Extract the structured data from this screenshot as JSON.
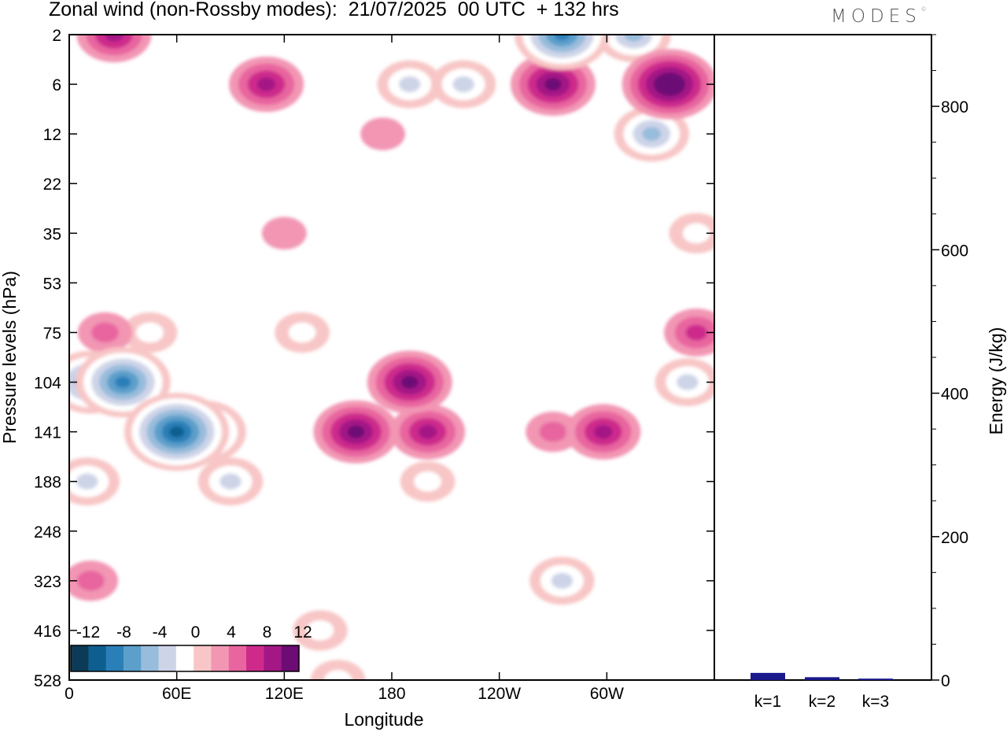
{
  "header": {
    "title": "Zonal wind (non-Rossby modes):  21/07/2025  00 UTC  + 132 hrs",
    "logo": "MODES"
  },
  "chart_data": [
    {
      "type": "heatmap",
      "title": "Zonal wind (non-Rossby modes):  21/07/2025  00 UTC  + 132 hrs",
      "xlabel": "Longitude",
      "ylabel": "Pressure levels (hPa)",
      "x_ticks": [
        "0",
        "60E",
        "120E",
        "180",
        "120W",
        "60W"
      ],
      "x_tick_values": [
        0,
        60,
        120,
        180,
        240,
        300
      ],
      "xlim": [
        0,
        360
      ],
      "y_ticks": [
        "2",
        "6",
        "12",
        "22",
        "35",
        "53",
        "75",
        "104",
        "141",
        "188",
        "248",
        "323",
        "416",
        "528"
      ],
      "colorbar_labels": [
        "-12",
        "-8",
        "-4",
        "0",
        "4",
        "8",
        "12"
      ],
      "contour_levels": [
        -14,
        -12,
        -10,
        -8,
        -6,
        -4,
        -2,
        2,
        4,
        6,
        8,
        10,
        12,
        14
      ],
      "colors": [
        "#0d3b57",
        "#0e5f8f",
        "#2a7fb8",
        "#5b9fca",
        "#98bcdc",
        "#ced4e8",
        "#ffffff",
        "#f8c6c6",
        "#f296b4",
        "#e8659f",
        "#cd2a8c",
        "#a41886",
        "#6c0c74"
      ],
      "cells": [
        {
          "lon": 12,
          "lev": "104",
          "value": -10
        },
        {
          "lon": 30,
          "lev": "104",
          "value": -12
        },
        {
          "lon": 60,
          "lev": "141",
          "value": -14
        },
        {
          "lon": 75,
          "lev": "141",
          "value": -10
        },
        {
          "lon": 10,
          "lev": "188",
          "value": -6
        },
        {
          "lon": 90,
          "lev": "188",
          "value": -6
        },
        {
          "lon": 45,
          "lev": "75",
          "value": -4
        },
        {
          "lon": 130,
          "lev": "75",
          "value": -4
        },
        {
          "lon": 140,
          "lev": "416",
          "value": -4
        },
        {
          "lon": 150,
          "lev": "528",
          "value": -4
        },
        {
          "lon": 160,
          "lev": "141",
          "value": 10
        },
        {
          "lon": 190,
          "lev": "104",
          "value": 10
        },
        {
          "lon": 200,
          "lev": "141",
          "value": 8
        },
        {
          "lon": 298,
          "lev": "141",
          "value": 8
        },
        {
          "lon": 270,
          "lev": "141",
          "value": 4
        },
        {
          "lon": 350,
          "lev": "75",
          "value": 6
        },
        {
          "lon": 20,
          "lev": "75",
          "value": 4
        },
        {
          "lon": 12,
          "lev": "323",
          "value": 4
        },
        {
          "lon": 335,
          "lev": "6",
          "value": 12
        },
        {
          "lon": 270,
          "lev": "6",
          "value": 10
        },
        {
          "lon": 275,
          "lev": "2",
          "value": -12
        },
        {
          "lon": 315,
          "lev": "2",
          "value": -8
        },
        {
          "lon": 325,
          "lev": "12",
          "value": -8
        },
        {
          "lon": 190,
          "lev": "6",
          "value": -6
        },
        {
          "lon": 220,
          "lev": "6",
          "value": -6
        },
        {
          "lon": 110,
          "lev": "6",
          "value": 8
        },
        {
          "lon": 25,
          "lev": "2",
          "value": 8
        },
        {
          "lon": 175,
          "lev": "12",
          "value": 2
        },
        {
          "lon": 120,
          "lev": "35",
          "value": 2
        },
        {
          "lon": 350,
          "lev": "35",
          "value": -4
        },
        {
          "lon": 345,
          "lev": "104",
          "value": -6
        },
        {
          "lon": 275,
          "lev": "323",
          "value": -6
        },
        {
          "lon": 200,
          "lev": "188",
          "value": -4
        }
      ]
    },
    {
      "type": "bar",
      "categories": [
        "k=1",
        "k=2",
        "k=3"
      ],
      "values": [
        10,
        4,
        2
      ],
      "ylabel": "Energy (J/kg)",
      "ylim": [
        0,
        900
      ],
      "y_ticks": [
        "0",
        "200",
        "400",
        "600",
        "800"
      ],
      "y_tick_values": [
        0,
        200,
        400,
        600,
        800
      ],
      "colors": [
        "#1a1a8c",
        "#1a1a8c",
        "#1a1a8c"
      ]
    }
  ]
}
